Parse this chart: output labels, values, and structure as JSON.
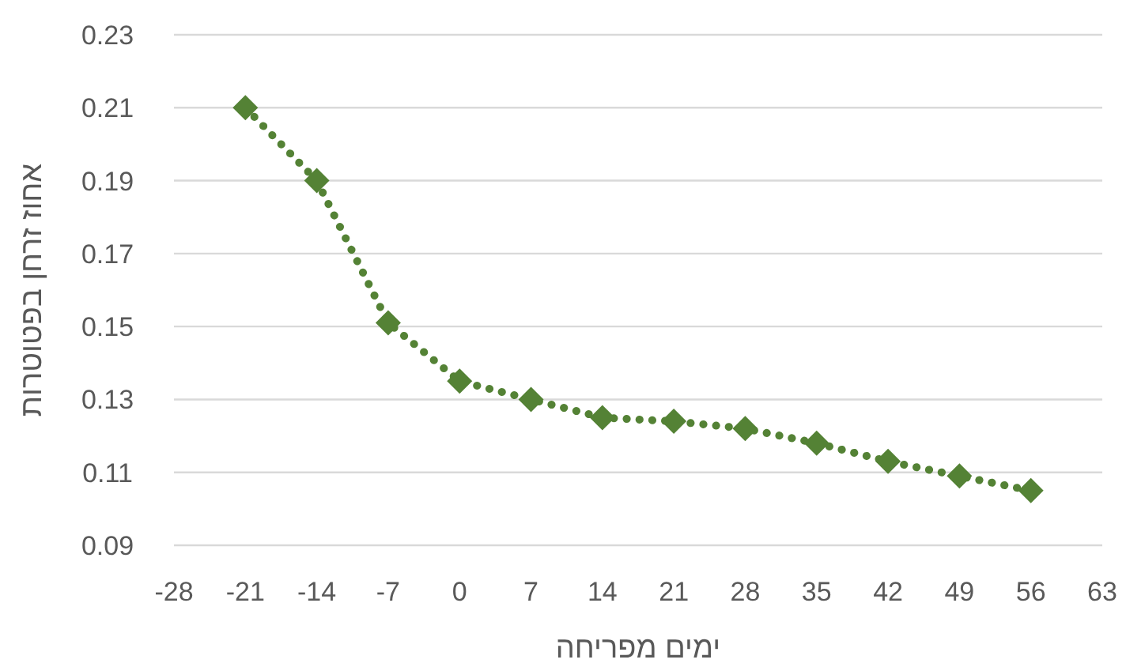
{
  "chart_data": {
    "type": "line",
    "xlabel": "ימים מפריחה",
    "ylabel": "אחוז זרחן בפטוטרות",
    "x": [
      -21,
      -14,
      -7,
      0,
      7,
      14,
      21,
      28,
      35,
      42,
      49,
      56
    ],
    "series": [
      {
        "color": "#548235",
        "values": [
          0.21,
          0.19,
          0.151,
          0.135,
          0.13,
          0.125,
          0.124,
          0.122,
          0.118,
          0.113,
          0.109,
          0.105
        ]
      }
    ],
    "marker": "diamond",
    "line_style": "dotted",
    "grid": "y",
    "xlim": [
      -28,
      63
    ],
    "xticks": [
      -28,
      -21,
      -14,
      -7,
      0,
      7,
      14,
      21,
      28,
      35,
      42,
      49,
      56,
      63
    ],
    "ylim": [
      0.09,
      0.23
    ],
    "yticks": [
      {
        "value": 0.09,
        "label": "0.09"
      },
      {
        "value": 0.11,
        "label": "0.11"
      },
      {
        "value": 0.13,
        "label": "0.13"
      },
      {
        "value": 0.15,
        "label": "0.15"
      },
      {
        "value": 0.17,
        "label": "0.17"
      },
      {
        "value": 0.19,
        "label": "0.19"
      },
      {
        "value": 0.21,
        "label": "0.21"
      },
      {
        "value": 0.23,
        "label": "0.23"
      }
    ]
  }
}
